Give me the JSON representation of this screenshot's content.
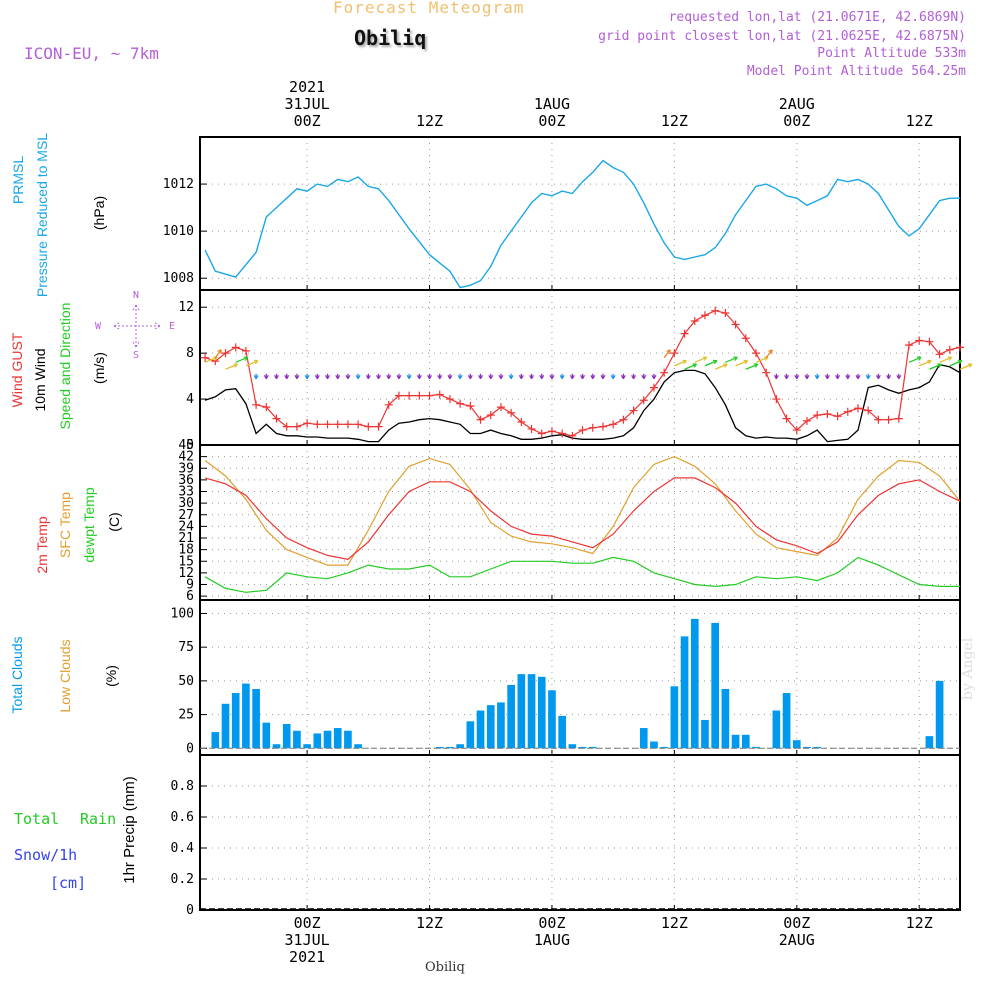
{
  "header": {
    "title": "Forecast Meteogram",
    "station": "Obiliq",
    "model": "ICON-EU, ~ 7km",
    "requested": "requested lon,lat (21.0671E, 42.6869N)",
    "grid_point": "grid point closest lon,lat (21.0625E, 42.6875N)",
    "altitude": "Point Altitude 533m",
    "model_altitude": "Model Point Altitude 564.25m",
    "credit": "by Angel",
    "footer_station": "Obiliq"
  },
  "colors": {
    "pressure": "#1aa7e8",
    "gust": "#ee3333",
    "wind": "#000000",
    "temp2m": "#ee3333",
    "sfc": "#e0a030",
    "dewpt": "#22cc22",
    "clouds": "#0099ee",
    "precip_total": "#22cc22",
    "precip_snow": "#3344ee",
    "purple": "#b35fd6",
    "title": "#f0c070"
  },
  "time_axis": {
    "top_labels": [
      {
        "lines": [
          "2021",
          "31JUL",
          "00Z"
        ],
        "t": 0
      },
      {
        "lines": [
          "12Z"
        ],
        "t": 12
      },
      {
        "lines": [
          "1AUG",
          "00Z"
        ],
        "t": 24
      },
      {
        "lines": [
          "12Z"
        ],
        "t": 36
      },
      {
        "lines": [
          "2AUG",
          "00Z"
        ],
        "t": 48
      },
      {
        "lines": [
          "12Z"
        ],
        "t": 60
      }
    ],
    "bottom_labels": [
      {
        "lines": [
          "00Z",
          "31JUL",
          "2021"
        ],
        "t": 0
      },
      {
        "lines": [
          "12Z"
        ],
        "t": 12
      },
      {
        "lines": [
          "00Z",
          "1AUG"
        ],
        "t": 24
      },
      {
        "lines": [
          "12Z"
        ],
        "t": 36
      },
      {
        "lines": [
          "00Z",
          "2AUG"
        ],
        "t": 48
      },
      {
        "lines": [
          "12Z"
        ],
        "t": 60
      }
    ]
  },
  "panels": {
    "pressure": {
      "labels": [
        "PRMSL",
        "Pressure Reduced to MSL",
        "(hPa)"
      ]
    },
    "wind": {
      "labels": [
        "Wind GUST",
        "10m Wind",
        "Speed and Direction",
        "(m/s)"
      ],
      "compass": [
        "N",
        "W",
        "E",
        "S"
      ]
    },
    "temp": {
      "labels": [
        "2m Temp",
        "SFC Temp",
        "dewpt Temp",
        "(C)"
      ]
    },
    "clouds": {
      "labels": [
        "Total Clouds",
        "Low Clouds",
        "(%)"
      ]
    },
    "precip": {
      "labels": [
        "Total",
        "Rain",
        "Snow/1h",
        "[cm]",
        "1hr Precip (mm)"
      ]
    }
  },
  "chart_data": [
    {
      "type": "line",
      "title": "PRMSL Pressure Reduced to MSL",
      "ylabel": "(hPa)",
      "ylim": [
        1007.5,
        1014
      ],
      "yticks": [
        1008,
        1010,
        1012
      ],
      "x_hours_from_31JUL00Z": [
        -10,
        -9,
        -7,
        -5,
        -4,
        -3,
        -1,
        0,
        1,
        2,
        3,
        4,
        5,
        6,
        7,
        8,
        10,
        12,
        14,
        15,
        16,
        17,
        18,
        19,
        21,
        22,
        23,
        24,
        25,
        26,
        27,
        28,
        29,
        30,
        31,
        32,
        33,
        34,
        35,
        36,
        37,
        38,
        39,
        40,
        41,
        42,
        43,
        44,
        45,
        46,
        47,
        48,
        49,
        50,
        51,
        52,
        53,
        54,
        55,
        56,
        57,
        58,
        59,
        60,
        61,
        62,
        63,
        64
      ],
      "values": [
        1009.2,
        1008.3,
        1008.05,
        1009.1,
        1010.6,
        1011.0,
        1011.8,
        1011.7,
        1012.0,
        1011.9,
        1012.2,
        1012.1,
        1012.3,
        1011.9,
        1011.8,
        1011.3,
        1010.1,
        1009.0,
        1008.3,
        1007.6,
        1007.7,
        1007.9,
        1008.5,
        1009.4,
        1010.6,
        1011.2,
        1011.6,
        1011.5,
        1011.7,
        1011.6,
        1012.1,
        1012.5,
        1013.0,
        1012.7,
        1012.5,
        1012.0,
        1011.2,
        1010.3,
        1009.5,
        1008.9,
        1008.8,
        1008.9,
        1009.0,
        1009.3,
        1009.9,
        1010.7,
        1011.3,
        1011.9,
        1012.0,
        1011.8,
        1011.5,
        1011.4,
        1011.1,
        1011.3,
        1011.5,
        1012.2,
        1012.1,
        1012.2,
        1012.0,
        1011.6,
        1010.9,
        1010.2,
        1009.8,
        1010.1,
        1010.7,
        1011.3,
        1011.4,
        1011.4
      ]
    },
    {
      "type": "line",
      "title": "Wind GUST / 10m Wind Speed",
      "ylabel": "(m/s)",
      "ylim": [
        0,
        13.5
      ],
      "yticks": [
        0,
        4,
        8,
        12
      ],
      "x_hours_from_31JUL00Z": [
        -10,
        -9,
        -8,
        -7,
        -6,
        -5,
        -4,
        -3,
        -2,
        -1,
        0,
        1,
        2,
        3,
        4,
        5,
        6,
        7,
        8,
        9,
        10,
        11,
        12,
        13,
        14,
        15,
        16,
        17,
        18,
        19,
        20,
        21,
        22,
        23,
        24,
        25,
        26,
        27,
        28,
        29,
        30,
        31,
        32,
        33,
        34,
        35,
        36,
        37,
        38,
        39,
        40,
        41,
        42,
        43,
        44,
        45,
        46,
        47,
        48,
        49,
        50,
        51,
        52,
        53,
        54,
        55,
        56,
        57,
        58,
        59,
        60,
        61,
        62,
        63,
        64
      ],
      "series": [
        {
          "name": "Wind GUST",
          "values": [
            7.6,
            7.3,
            8.0,
            8.5,
            8.2,
            3.5,
            3.3,
            2.3,
            1.6,
            1.6,
            1.9,
            1.8,
            1.8,
            1.8,
            1.8,
            1.8,
            1.6,
            1.6,
            3.5,
            4.3,
            4.3,
            4.3,
            4.3,
            4.4,
            4.0,
            3.6,
            3.4,
            2.2,
            2.6,
            3.3,
            2.8,
            2.0,
            1.4,
            1.0,
            1.2,
            1.0,
            0.8,
            1.3,
            1.5,
            1.6,
            1.8,
            2.2,
            3.0,
            3.9,
            5.0,
            6.3,
            8.0,
            9.7,
            10.8,
            11.3,
            11.7,
            11.5,
            10.5,
            9.3,
            8.0,
            6.3,
            4.0,
            2.3,
            1.3,
            2.1,
            2.6,
            2.7,
            2.5,
            2.9,
            3.2,
            3.0,
            2.2,
            2.2,
            2.3,
            8.7,
            9.1,
            9.0,
            7.9,
            8.3,
            8.5
          ]
        },
        {
          "name": "10m Wind",
          "values": [
            3.9,
            4.2,
            4.8,
            4.9,
            3.6,
            1.0,
            1.8,
            1.0,
            0.8,
            0.8,
            0.7,
            0.7,
            0.6,
            0.6,
            0.6,
            0.5,
            0.3,
            0.3,
            1.3,
            1.9,
            2.0,
            2.2,
            2.3,
            2.2,
            2.0,
            1.8,
            1.0,
            1.0,
            1.3,
            1.0,
            0.8,
            0.5,
            0.5,
            0.6,
            0.8,
            0.9,
            0.6,
            0.5,
            0.5,
            0.5,
            0.6,
            0.8,
            1.5,
            3.0,
            4.0,
            5.5,
            6.3,
            6.5,
            6.5,
            6.2,
            5.0,
            3.5,
            1.5,
            0.8,
            0.6,
            0.7,
            0.6,
            0.6,
            0.5,
            0.8,
            1.3,
            0.3,
            0.4,
            0.5,
            1.3,
            5.0,
            5.2,
            4.8,
            4.5,
            4.8,
            5.0,
            5.5,
            7.0,
            6.8,
            6.3
          ]
        }
      ]
    },
    {
      "type": "line",
      "title": "2m Temp / SFC Temp / dewpt Temp",
      "ylabel": "(C)",
      "ylim": [
        5,
        45
      ],
      "yticks": [
        6,
        9,
        12,
        15,
        18,
        21,
        24,
        27,
        30,
        33,
        36,
        39,
        42,
        45
      ],
      "x_hours_from_31JUL00Z": [
        -10,
        -8,
        -6,
        -4,
        -2,
        0,
        2,
        4,
        6,
        8,
        10,
        12,
        14,
        16,
        18,
        20,
        22,
        24,
        26,
        28,
        30,
        32,
        34,
        36,
        38,
        40,
        42,
        44,
        46,
        48,
        50,
        52,
        54,
        56,
        58,
        60,
        62,
        64
      ],
      "series": [
        {
          "name": "2m Temp",
          "values": [
            36.5,
            35.0,
            32.0,
            26.0,
            21.0,
            18.5,
            16.5,
            15.5,
            20.0,
            27.0,
            33.0,
            35.5,
            35.5,
            33.0,
            28.0,
            24.0,
            22.0,
            21.5,
            20.0,
            18.5,
            22.0,
            28.0,
            33.0,
            36.5,
            36.5,
            34.0,
            30.0,
            24.0,
            20.5,
            19.0,
            17.0,
            20.0,
            27.0,
            32.0,
            35.0,
            36.0,
            33.0,
            30.5
          ]
        },
        {
          "name": "SFC Temp",
          "values": [
            41.0,
            37.0,
            31.0,
            23.0,
            18.0,
            16.0,
            14.0,
            14.0,
            23.0,
            33.0,
            39.5,
            41.5,
            40.0,
            33.5,
            25.0,
            21.5,
            20.0,
            19.5,
            18.5,
            17.0,
            24.0,
            34.0,
            40.0,
            42.0,
            39.5,
            35.0,
            28.0,
            22.0,
            18.5,
            17.5,
            16.5,
            21.0,
            31.0,
            37.0,
            41.0,
            40.5,
            37.0,
            30.5
          ]
        },
        {
          "name": "dewpt Temp",
          "values": [
            11.0,
            8.0,
            7.0,
            7.5,
            12.0,
            11.0,
            10.5,
            12.0,
            14.0,
            13.0,
            13.0,
            14.0,
            11.0,
            11.0,
            13.0,
            15.0,
            15.0,
            15.0,
            14.5,
            14.5,
            16.0,
            15.0,
            12.0,
            10.5,
            9.0,
            8.5,
            9.0,
            11.0,
            10.5,
            11.0,
            10.0,
            12.0,
            16.0,
            14.0,
            11.5,
            9.0,
            8.5,
            8.5
          ]
        }
      ]
    },
    {
      "type": "bar",
      "title": "Total Clouds / Low Clouds",
      "ylabel": "(%)",
      "ylim": [
        -5,
        110
      ],
      "yticks": [
        0,
        25,
        50,
        75,
        100
      ],
      "x_hours_from_31JUL00Z": [
        -9,
        -8,
        -7,
        -6,
        -5,
        -4,
        -3,
        -2,
        -1,
        0,
        1,
        2,
        3,
        4,
        5,
        13,
        14,
        15,
        16,
        17,
        18,
        19,
        20,
        21,
        22,
        23,
        24,
        25,
        26,
        27,
        28,
        33,
        34,
        35,
        36,
        37,
        38,
        39,
        40,
        41,
        42,
        43,
        44,
        46,
        47,
        48,
        49,
        50,
        61,
        62
      ],
      "series": [
        {
          "name": "Total Clouds",
          "values": [
            12,
            33,
            41,
            48,
            44,
            19,
            3,
            18,
            13,
            3,
            11,
            13,
            15,
            13,
            3,
            1,
            1,
            3,
            20,
            28,
            32,
            34,
            47,
            55,
            55,
            53,
            43,
            24,
            3,
            1,
            1,
            15,
            5,
            1,
            46,
            83,
            96,
            21,
            93,
            44,
            10,
            10,
            1,
            28,
            41,
            6,
            1,
            1,
            9,
            50
          ]
        },
        {
          "name": "Low Clouds",
          "values": [
            0,
            0,
            0,
            0,
            0,
            0,
            0,
            0,
            0,
            0,
            0,
            0,
            0,
            0,
            0,
            0,
            0,
            0,
            0,
            0,
            0,
            0,
            0,
            0,
            0,
            0,
            0,
            0,
            0,
            0,
            0,
            0,
            0,
            0,
            0,
            0,
            0,
            0,
            0,
            0,
            0,
            0,
            0,
            0,
            0,
            0,
            0,
            0,
            0,
            0
          ]
        }
      ]
    },
    {
      "type": "line",
      "title": "1hr Precip",
      "ylabel": "1hr Precip (mm)",
      "ylim": [
        0,
        1
      ],
      "yticks": [
        0,
        0.2,
        0.4,
        0.6,
        0.8
      ],
      "series": [
        {
          "name": "Total",
          "values": [
            0,
            0
          ]
        },
        {
          "name": "Rain",
          "values": [
            0,
            0
          ]
        },
        {
          "name": "Snow/1h",
          "values": [
            0,
            0
          ]
        }
      ],
      "x_hours_from_31JUL00Z": [
        -10,
        64
      ]
    }
  ],
  "wind_arrow_colors": [
    "#22cc22",
    "#e0c030",
    "#f08020",
    "#9030c0",
    "#2090ee"
  ]
}
